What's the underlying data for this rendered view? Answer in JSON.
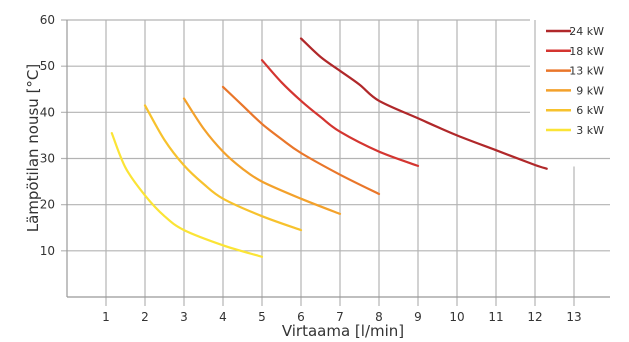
{
  "chart_data": {
    "type": "line",
    "xlabel": "Virtaama  [l/min]",
    "ylabel": "Lämpötilan nousu  [°C]",
    "xlim": [
      0,
      14
    ],
    "ylim": [
      0,
      60
    ],
    "x_ticks": [
      1,
      2,
      3,
      4,
      5,
      6,
      7,
      8,
      9,
      10,
      11,
      12,
      13
    ],
    "y_ticks": [
      10,
      20,
      30,
      40,
      50,
      60
    ],
    "grid": true,
    "legend_position": "top-right",
    "series": [
      {
        "name": "24 kW",
        "color": "#b0282a",
        "points": [
          [
            6.0,
            56.0
          ],
          [
            6.5,
            52.0
          ],
          [
            7.0,
            49.0
          ],
          [
            7.5,
            46.0
          ],
          [
            8.0,
            42.5
          ],
          [
            9.0,
            38.7
          ],
          [
            10.0,
            35.0
          ],
          [
            11.0,
            31.8
          ],
          [
            12.0,
            28.6
          ],
          [
            12.3,
            27.8
          ]
        ]
      },
      {
        "name": "18 kW",
        "color": "#d43530",
        "points": [
          [
            5.0,
            51.3
          ],
          [
            5.5,
            46.5
          ],
          [
            6.0,
            42.5
          ],
          [
            6.5,
            39.0
          ],
          [
            7.0,
            35.8
          ],
          [
            8.0,
            31.5
          ],
          [
            9.0,
            28.4
          ]
        ]
      },
      {
        "name": "13 kW",
        "color": "#e9762a",
        "points": [
          [
            4.0,
            45.5
          ],
          [
            4.5,
            41.5
          ],
          [
            5.0,
            37.5
          ],
          [
            5.5,
            34.2
          ],
          [
            6.0,
            31.2
          ],
          [
            7.0,
            26.5
          ],
          [
            8.0,
            22.3
          ]
        ]
      },
      {
        "name": "9 kW",
        "color": "#f3a12b",
        "points": [
          [
            3.0,
            43.0
          ],
          [
            3.5,
            36.5
          ],
          [
            4.0,
            31.5
          ],
          [
            4.5,
            27.8
          ],
          [
            5.0,
            25.0
          ],
          [
            6.0,
            21.3
          ],
          [
            7.0,
            18.0
          ]
        ]
      },
      {
        "name": "6 kW",
        "color": "#f7c22d",
        "points": [
          [
            2.0,
            41.5
          ],
          [
            2.5,
            34.0
          ],
          [
            3.0,
            28.5
          ],
          [
            3.5,
            24.5
          ],
          [
            4.0,
            21.3
          ],
          [
            5.0,
            17.5
          ],
          [
            6.0,
            14.5
          ]
        ]
      },
      {
        "name": "3 kW",
        "color": "#fbe436",
        "points": [
          [
            1.15,
            35.5
          ],
          [
            1.5,
            28.0
          ],
          [
            2.0,
            22.0
          ],
          [
            2.5,
            17.5
          ],
          [
            3.0,
            14.5
          ],
          [
            4.0,
            11.2
          ],
          [
            5.0,
            8.7
          ]
        ]
      }
    ]
  }
}
